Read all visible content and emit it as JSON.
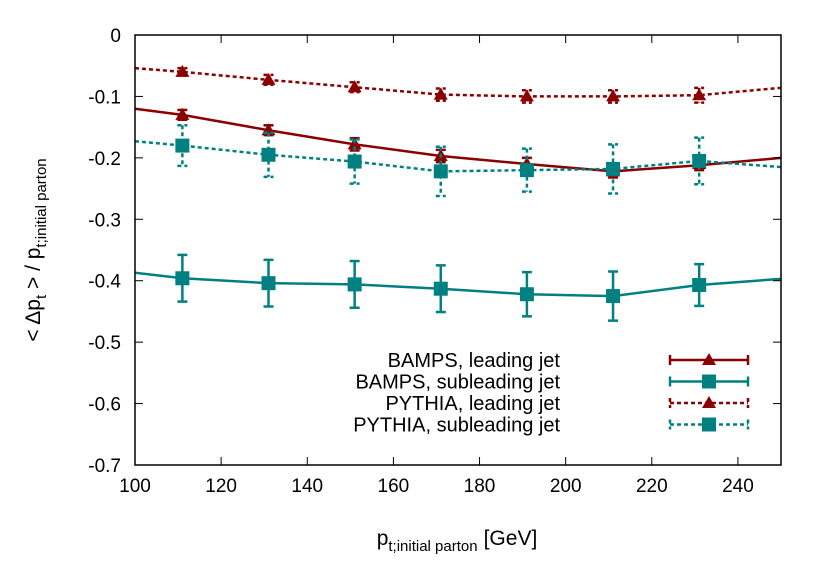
{
  "chart_data": {
    "type": "line",
    "title": "",
    "xlabel": {
      "main": "p",
      "sub": "t;initial parton",
      "unit": "[GeV]"
    },
    "ylabel": {
      "pre": "< Δp",
      "sub1": "t",
      "mid": " > / p",
      "sub2": "t;initial parton"
    },
    "xlim": [
      100,
      250
    ],
    "ylim": [
      -0.7,
      0
    ],
    "xticks": [
      100,
      120,
      140,
      160,
      180,
      200,
      220,
      240
    ],
    "yticks": [
      0,
      -0.1,
      -0.2,
      -0.3,
      -0.4,
      -0.5,
      -0.6,
      -0.7
    ],
    "ytick_labels": [
      "0",
      "-0.1",
      "-0.2",
      "-0.3",
      "-0.4",
      "-0.5",
      "-0.6",
      "-0.7"
    ],
    "grid": false,
    "legend_position": "bottom-right",
    "series": [
      {
        "name": "BAMPS, leading jet",
        "color": "#8b0000",
        "marker": "triangle",
        "dash": "solid",
        "x": [
          111,
          131,
          151,
          171,
          191,
          211,
          231
        ],
        "y": [
          -0.13,
          -0.155,
          -0.178,
          -0.197,
          -0.21,
          -0.222,
          -0.21
        ],
        "err": [
          0.008,
          0.008,
          0.01,
          0.01,
          0.01,
          0.01,
          0.01
        ],
        "curve": {
          "x": [
            100,
            111,
            131,
            151,
            171,
            191,
            211,
            231,
            250
          ],
          "y": [
            -0.12,
            -0.13,
            -0.155,
            -0.178,
            -0.197,
            -0.21,
            -0.222,
            -0.212,
            -0.2
          ]
        }
      },
      {
        "name": "BAMPS, subleading jet",
        "color": "#008080",
        "marker": "square",
        "dash": "solid",
        "x": [
          111,
          131,
          151,
          171,
          191,
          211,
          231
        ],
        "y": [
          -0.396,
          -0.404,
          -0.406,
          -0.413,
          -0.422,
          -0.425,
          -0.407
        ],
        "err": [
          0.038,
          0.038,
          0.038,
          0.038,
          0.036,
          0.04,
          0.034
        ],
        "curve": {
          "x": [
            100,
            111,
            131,
            151,
            171,
            191,
            211,
            231,
            250
          ],
          "y": [
            -0.387,
            -0.396,
            -0.404,
            -0.406,
            -0.413,
            -0.422,
            -0.425,
            -0.407,
            -0.397
          ]
        }
      },
      {
        "name": "PYTHIA, leading jet",
        "color": "#8b0000",
        "marker": "triangle",
        "dash": "dashed",
        "x": [
          111,
          131,
          151,
          171,
          191,
          211,
          231
        ],
        "y": [
          -0.06,
          -0.073,
          -0.085,
          -0.097,
          -0.1,
          -0.1,
          -0.098
        ],
        "err": [
          0.006,
          0.008,
          0.008,
          0.01,
          0.01,
          0.01,
          0.012
        ],
        "curve": {
          "x": [
            100,
            111,
            131,
            151,
            171,
            191,
            211,
            231,
            250
          ],
          "y": [
            -0.054,
            -0.06,
            -0.073,
            -0.085,
            -0.097,
            -0.1,
            -0.1,
            -0.098,
            -0.086
          ]
        }
      },
      {
        "name": "PYTHIA, subleading jet",
        "color": "#008080",
        "marker": "square",
        "dash": "dashed",
        "x": [
          111,
          131,
          151,
          171,
          191,
          211,
          231
        ],
        "y": [
          -0.18,
          -0.195,
          -0.206,
          -0.222,
          -0.22,
          -0.218,
          -0.205
        ],
        "err": [
          0.033,
          0.036,
          0.036,
          0.04,
          0.035,
          0.04,
          0.038
        ],
        "curve": {
          "x": [
            100,
            111,
            131,
            151,
            171,
            191,
            211,
            231,
            250
          ],
          "y": [
            -0.173,
            -0.18,
            -0.195,
            -0.206,
            -0.222,
            -0.22,
            -0.218,
            -0.205,
            -0.215
          ]
        }
      }
    ]
  }
}
